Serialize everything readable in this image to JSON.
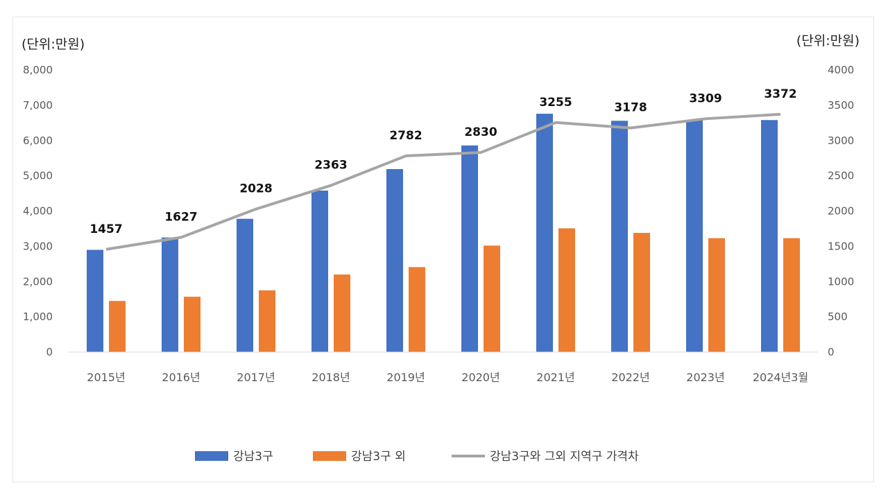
{
  "chart_data": {
    "type": "bar",
    "unit_left": "(단위:만원)",
    "unit_right": "(단위:만원)",
    "categories": [
      "2015년",
      "2016년",
      "2017년",
      "2018년",
      "2019년",
      "2020년",
      "2021년",
      "2022년",
      "2023년",
      "2024년3월"
    ],
    "ylim_left": [
      0,
      8000
    ],
    "yticks_left": [
      "0",
      "1,000",
      "2,000",
      "3,000",
      "4,000",
      "5,000",
      "6,000",
      "7,000",
      "8,000"
    ],
    "ylim_right": [
      0,
      4000
    ],
    "yticks_right": [
      "0",
      "500",
      "1000",
      "1500",
      "2000",
      "2500",
      "3000",
      "3500",
      "4000"
    ],
    "grid": false,
    "legend_position": "bottom",
    "series": [
      {
        "name": "강남3구",
        "type": "bar",
        "axis": "left",
        "color": "#4472C4",
        "values": [
          2900,
          3250,
          3780,
          4580,
          5190,
          5860,
          6760,
          6560,
          6570,
          6580
        ]
      },
      {
        "name": "강남3구 외",
        "type": "bar",
        "axis": "left",
        "color": "#ED7D31",
        "values": [
          1450,
          1570,
          1750,
          2200,
          2410,
          3020,
          3510,
          3380,
          3230,
          3230
        ]
      },
      {
        "name": "강남3구와 그외 지역구 가격차",
        "type": "line",
        "axis": "right",
        "color": "#A5A5A5",
        "values": [
          1457,
          1627,
          2028,
          2363,
          2782,
          2830,
          3255,
          3178,
          3309,
          3372
        ],
        "labels": [
          "1457",
          "1627",
          "2028",
          "2363",
          "2782",
          "2830",
          "3255",
          "3178",
          "3309",
          "3372"
        ]
      }
    ]
  }
}
